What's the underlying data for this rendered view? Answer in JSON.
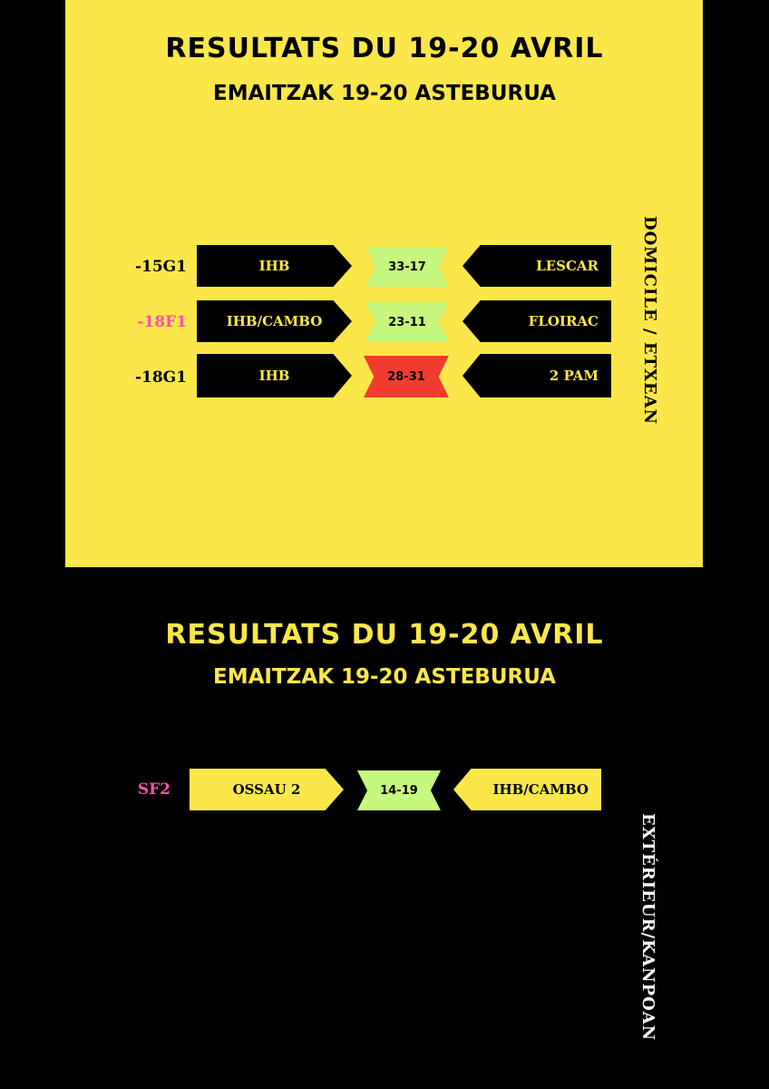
{
  "home": {
    "title": "RESULTATS DU 19-20 AVRIL",
    "subtitle": "EMAITZAK 19-20 ASTEBURUA",
    "side_label": "DOMICILE / ETXEAN",
    "matches": [
      {
        "category": "-15G1",
        "home": "IHB",
        "score": "33-17",
        "away": "LESCAR",
        "result": "win"
      },
      {
        "category": "-18F1",
        "home": "IHB/CAMBO",
        "score": "23-11",
        "away": "FLOIRAC",
        "result": "win"
      },
      {
        "category": "-18G1",
        "home": "IHB",
        "score": "28-31",
        "away": "2 PAM",
        "result": "loss"
      }
    ]
  },
  "away": {
    "title": "RESULTATS DU 19-20 AVRIL",
    "subtitle": "EMAITZAK 19-20 ASTEBURUA",
    "side_label": "EXTÉRIEUR/KANPOAN",
    "matches": [
      {
        "category": "SF2",
        "home": "OSSAU 2",
        "score": "14-19",
        "away": "IHB/CAMBO",
        "result": "win"
      }
    ]
  },
  "colors": {
    "yellow": "#fce74a",
    "black": "#000000",
    "win": "#c6f77e",
    "loss": "#f23b2f",
    "pink": "#ff4fb0"
  }
}
